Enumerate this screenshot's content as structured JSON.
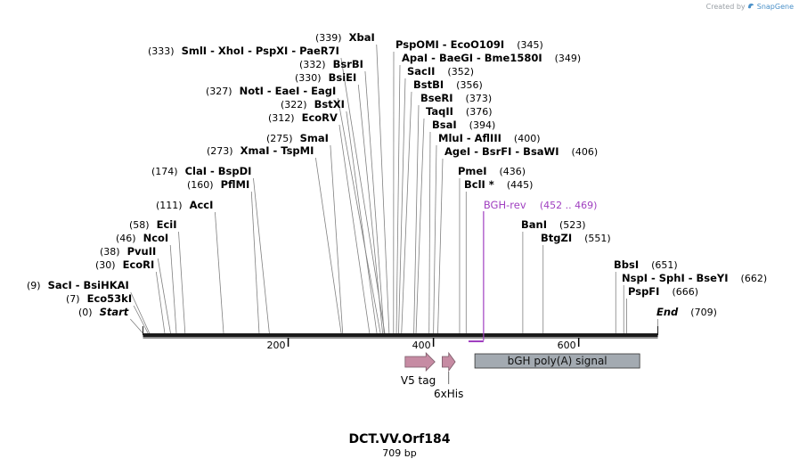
{
  "credit": {
    "prefix": "Created by",
    "brand": "SnapGene",
    "icon": "snapgene-logo-icon",
    "color": "#4a90c8"
  },
  "map": {
    "title": "DCT.VV.Orf184",
    "length_label": "709 bp",
    "length_bp": 709,
    "ruler": {
      "ticks": [
        200,
        400,
        600
      ]
    },
    "colors": {
      "backbone": "#1a1a1a",
      "feature_arrow": "#c68ba3",
      "polyA_box": "#a3aab1",
      "primer": "#a040c0",
      "site_line": "#808080"
    },
    "sites": [
      {
        "pos": 0,
        "names": [
          "Start"
        ],
        "start_end": true
      },
      {
        "pos": 7,
        "names": [
          "Eco53kI"
        ]
      },
      {
        "pos": 9,
        "names": [
          "SacI",
          "BsiHKAI"
        ]
      },
      {
        "pos": 30,
        "names": [
          "EcoRI"
        ]
      },
      {
        "pos": 38,
        "names": [
          "PvuII"
        ]
      },
      {
        "pos": 46,
        "names": [
          "NcoI"
        ]
      },
      {
        "pos": 58,
        "names": [
          "EciI"
        ]
      },
      {
        "pos": 111,
        "names": [
          "AccI"
        ]
      },
      {
        "pos": 160,
        "names": [
          "PflMI"
        ]
      },
      {
        "pos": 174,
        "names": [
          "ClaI",
          "BspDI"
        ]
      },
      {
        "pos": 273,
        "names": [
          "XmaI",
          "TspMI"
        ]
      },
      {
        "pos": 275,
        "names": [
          "SmaI"
        ]
      },
      {
        "pos": 312,
        "names": [
          "EcoRV"
        ]
      },
      {
        "pos": 322,
        "names": [
          "BstXI"
        ]
      },
      {
        "pos": 327,
        "names": [
          "NotI",
          "EaeI",
          "EagI"
        ]
      },
      {
        "pos": 330,
        "names": [
          "BsiEI"
        ]
      },
      {
        "pos": 332,
        "names": [
          "BsrBI"
        ]
      },
      {
        "pos": 333,
        "names": [
          "SmlI",
          "XhoI",
          "PspXI",
          "PaeR7I"
        ]
      },
      {
        "pos": 339,
        "names": [
          "XbaI"
        ]
      },
      {
        "pos": 345,
        "names": [
          "PspOMI",
          "EcoO109I"
        ]
      },
      {
        "pos": 349,
        "names": [
          "ApaI",
          "BaeGI",
          "Bme1580I"
        ]
      },
      {
        "pos": 352,
        "names": [
          "SacII"
        ]
      },
      {
        "pos": 356,
        "names": [
          "BstBI"
        ]
      },
      {
        "pos": 373,
        "names": [
          "BseRI"
        ]
      },
      {
        "pos": 376,
        "names": [
          "TaqII"
        ]
      },
      {
        "pos": 394,
        "names": [
          "BsaI"
        ]
      },
      {
        "pos": 400,
        "names": [
          "MluI",
          "AflIII"
        ]
      },
      {
        "pos": 406,
        "names": [
          "AgeI",
          "BsrFI",
          "BsaWI"
        ]
      },
      {
        "pos": 436,
        "names": [
          "PmeI"
        ]
      },
      {
        "pos": 445,
        "names": [
          "BclI *"
        ]
      },
      {
        "pos": 523,
        "names": [
          "BanI"
        ]
      },
      {
        "pos": 551,
        "names": [
          "BtgZI"
        ]
      },
      {
        "pos": 651,
        "names": [
          "BbsI"
        ]
      },
      {
        "pos": 662,
        "names": [
          "NspI",
          "SphI",
          "BseYI"
        ]
      },
      {
        "pos": 666,
        "names": [
          "PspFI"
        ]
      },
      {
        "pos": 709,
        "names": [
          "End"
        ],
        "start_end": true
      }
    ],
    "primer": {
      "name": "BGH-rev",
      "range_label": "(452 .. 469)",
      "start": 452,
      "end": 469
    },
    "features": [
      {
        "name": "V5 tag",
        "start": 361,
        "end": 402,
        "shape": "arrow"
      },
      {
        "name": "6xHis",
        "start": 412,
        "end": 430,
        "shape": "arrow"
      },
      {
        "name": "bGH poly(A) signal",
        "start": 457,
        "end": 684,
        "shape": "box"
      }
    ]
  }
}
